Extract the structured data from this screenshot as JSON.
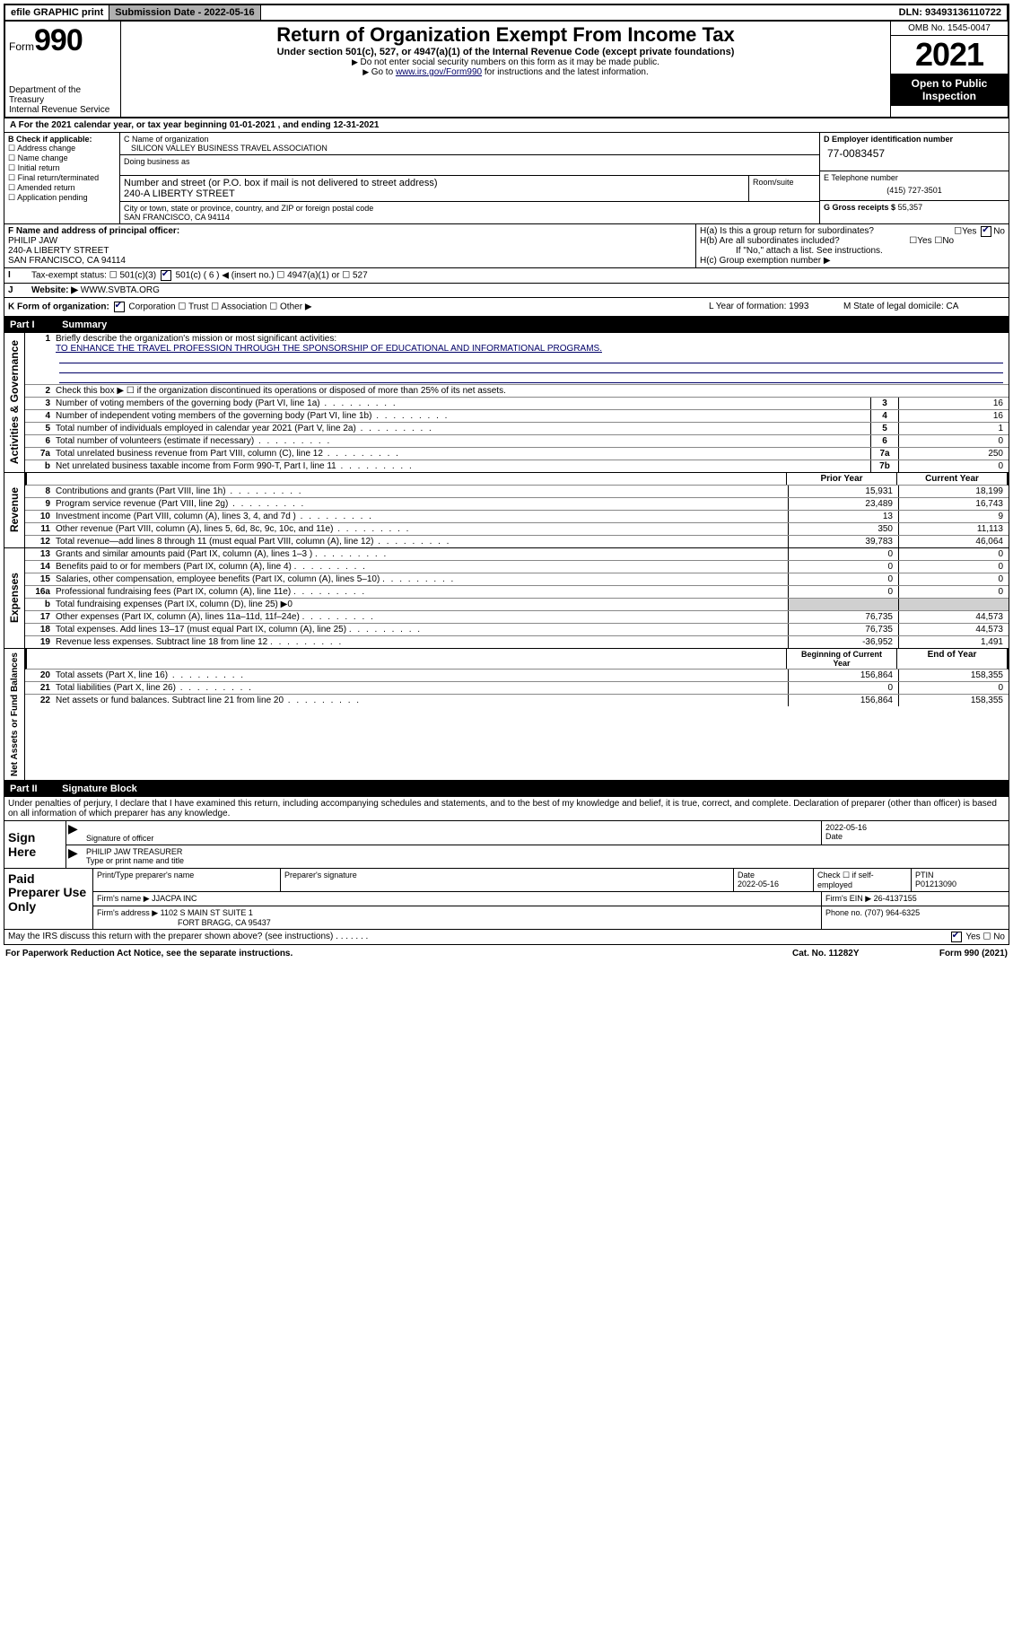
{
  "top": {
    "efile": "efile GRAPHIC print",
    "submission": "Submission Date - 2022-05-16",
    "dln": "DLN: 93493136110722"
  },
  "header": {
    "form_prefix": "Form",
    "form_num": "990",
    "title": "Return of Organization Exempt From Income Tax",
    "subtitle": "Under section 501(c), 527, or 4947(a)(1) of the Internal Revenue Code (except private foundations)",
    "note1": "Do not enter social security numbers on this form as it may be made public.",
    "note2_pre": "Go to ",
    "note2_link": "www.irs.gov/Form990",
    "note2_post": " for instructions and the latest information.",
    "dept": "Department of the Treasury",
    "irs": "Internal Revenue Service",
    "omb": "OMB No. 1545-0047",
    "year": "2021",
    "open": "Open to Public Inspection"
  },
  "periodA": "For the 2021 calendar year, or tax year beginning 01-01-2021   , and ending 12-31-2021",
  "B": {
    "label": "B Check if applicable:",
    "opts": [
      "Address change",
      "Name change",
      "Initial return",
      "Final return/terminated",
      "Amended return",
      "Application pending"
    ]
  },
  "C": {
    "name_lbl": "C Name of organization",
    "name": "SILICON VALLEY BUSINESS TRAVEL ASSOCIATION",
    "dba_lbl": "Doing business as",
    "addr_lbl": "Number and street (or P.O. box if mail is not delivered to street address)",
    "room_lbl": "Room/suite",
    "addr": "240-A LIBERTY STREET",
    "city_lbl": "City or town, state or province, country, and ZIP or foreign postal code",
    "city": "SAN FRANCISCO, CA  94114"
  },
  "D": {
    "lbl": "D Employer identification number",
    "val": "77-0083457"
  },
  "E": {
    "lbl": "E Telephone number",
    "val": "(415) 727-3501"
  },
  "G": {
    "lbl": "G Gross receipts $",
    "val": "55,357"
  },
  "F": {
    "lbl": "F  Name and address of principal officer:",
    "name": "PHILIP JAW",
    "addr1": "240-A LIBERTY STREET",
    "addr2": "SAN FRANCISCO, CA  94114"
  },
  "H": {
    "a": "H(a)  Is this a group return for subordinates?",
    "a_yes": "Yes",
    "a_no": "No",
    "b": "H(b)  Are all subordinates included?",
    "b_yes": "Yes",
    "b_no": "No",
    "b_note": "If \"No,\" attach a list. See instructions.",
    "c": "H(c)  Group exemption number ▶"
  },
  "I": {
    "lbl": "Tax-exempt status:",
    "opt1": "501(c)(3)",
    "opt2": "501(c) ( 6 ) ◀ (insert no.)",
    "opt3": "4947(a)(1) or",
    "opt4": "527"
  },
  "J": {
    "lbl": "Website: ▶",
    "val": "WWW.SVBTA.ORG"
  },
  "K": {
    "lbl": "K Form of organization:",
    "opts": [
      "Corporation",
      "Trust",
      "Association",
      "Other ▶"
    ],
    "L": "L Year of formation: 1993",
    "M": "M State of legal domicile: CA"
  },
  "parts": {
    "p1": {
      "num": "Part I",
      "title": "Summary"
    },
    "p2": {
      "num": "Part II",
      "title": "Signature Block"
    }
  },
  "side_labels": {
    "gov": "Activities & Governance",
    "rev": "Revenue",
    "exp": "Expenses",
    "net": "Net Assets or Fund Balances"
  },
  "summary": {
    "l1": "Briefly describe the organization's mission or most significant activities:",
    "mission": "TO ENHANCE THE TRAVEL PROFESSION THROUGH THE SPONSORSHIP OF EDUCATIONAL AND INFORMATIONAL PROGRAMS.",
    "l2": "Check this box ▶ ☐  if the organization discontinued its operations or disposed of more than 25% of its net assets.",
    "lines_gov": [
      {
        "n": "3",
        "t": "Number of voting members of the governing body (Part VI, line 1a)",
        "bn": "3",
        "v": "16"
      },
      {
        "n": "4",
        "t": "Number of independent voting members of the governing body (Part VI, line 1b)",
        "bn": "4",
        "v": "16"
      },
      {
        "n": "5",
        "t": "Total number of individuals employed in calendar year 2021 (Part V, line 2a)",
        "bn": "5",
        "v": "1"
      },
      {
        "n": "6",
        "t": "Total number of volunteers (estimate if necessary)",
        "bn": "6",
        "v": "0"
      },
      {
        "n": "7a",
        "t": "Total unrelated business revenue from Part VIII, column (C), line 12",
        "bn": "7a",
        "v": "250"
      },
      {
        "n": "b",
        "t": "Net unrelated business taxable income from Form 990-T, Part I, line 11",
        "bn": "7b",
        "v": "0"
      }
    ],
    "col_hdr": {
      "prior": "Prior Year",
      "curr": "Current Year"
    },
    "lines_rev": [
      {
        "n": "8",
        "t": "Contributions and grants (Part VIII, line 1h)",
        "p": "15,931",
        "c": "18,199"
      },
      {
        "n": "9",
        "t": "Program service revenue (Part VIII, line 2g)",
        "p": "23,489",
        "c": "16,743"
      },
      {
        "n": "10",
        "t": "Investment income (Part VIII, column (A), lines 3, 4, and 7d )",
        "p": "13",
        "c": "9"
      },
      {
        "n": "11",
        "t": "Other revenue (Part VIII, column (A), lines 5, 6d, 8c, 9c, 10c, and 11e)",
        "p": "350",
        "c": "11,113"
      },
      {
        "n": "12",
        "t": "Total revenue—add lines 8 through 11 (must equal Part VIII, column (A), line 12)",
        "p": "39,783",
        "c": "46,064"
      }
    ],
    "lines_exp": [
      {
        "n": "13",
        "t": "Grants and similar amounts paid (Part IX, column (A), lines 1–3 )",
        "p": "0",
        "c": "0"
      },
      {
        "n": "14",
        "t": "Benefits paid to or for members (Part IX, column (A), line 4)",
        "p": "0",
        "c": "0"
      },
      {
        "n": "15",
        "t": "Salaries, other compensation, employee benefits (Part IX, column (A), lines 5–10)",
        "p": "0",
        "c": "0"
      },
      {
        "n": "16a",
        "t": "Professional fundraising fees (Part IX, column (A), line 11e)",
        "p": "0",
        "c": "0"
      },
      {
        "n": "b",
        "t": "Total fundraising expenses (Part IX, column (D), line 25) ▶0",
        "p": "",
        "c": "",
        "shade": true
      },
      {
        "n": "17",
        "t": "Other expenses (Part IX, column (A), lines 11a–11d, 11f–24e)",
        "p": "76,735",
        "c": "44,573"
      },
      {
        "n": "18",
        "t": "Total expenses. Add lines 13–17 (must equal Part IX, column (A), line 25)",
        "p": "76,735",
        "c": "44,573"
      },
      {
        "n": "19",
        "t": "Revenue less expenses. Subtract line 18 from line 12",
        "p": "-36,952",
        "c": "1,491"
      }
    ],
    "col_hdr2": {
      "beg": "Beginning of Current Year",
      "end": "End of Year"
    },
    "lines_net": [
      {
        "n": "20",
        "t": "Total assets (Part X, line 16)",
        "p": "156,864",
        "c": "158,355"
      },
      {
        "n": "21",
        "t": "Total liabilities (Part X, line 26)",
        "p": "0",
        "c": "0"
      },
      {
        "n": "22",
        "t": "Net assets or fund balances. Subtract line 21 from line 20",
        "p": "156,864",
        "c": "158,355"
      }
    ]
  },
  "sig": {
    "perjury": "Under penalties of perjury, I declare that I have examined this return, including accompanying schedules and statements, and to the best of my knowledge and belief, it is true, correct, and complete. Declaration of preparer (other than officer) is based on all information of which preparer has any knowledge.",
    "sign_here": "Sign Here",
    "sig_officer": "Signature of officer",
    "date": "Date",
    "date_val": "2022-05-16",
    "name_title": "PHILIP JAW  TREASURER",
    "name_lbl": "Type or print name and title"
  },
  "paid": {
    "lbl": "Paid Preparer Use Only",
    "hdr": [
      "Print/Type preparer's name",
      "Preparer's signature",
      "Date",
      "",
      "PTIN"
    ],
    "date": "2022-05-16",
    "check": "Check ☐ if self-employed",
    "ptin": "P01213090",
    "firm_name_lbl": "Firm's name    ▶",
    "firm_name": "JJACPA INC",
    "firm_ein_lbl": "Firm's EIN ▶",
    "firm_ein": "26-4137155",
    "firm_addr_lbl": "Firm's address ▶",
    "firm_addr1": "1102 S MAIN ST SUITE 1",
    "firm_addr2": "FORT BRAGG, CA  95437",
    "phone_lbl": "Phone no.",
    "phone": "(707) 964-6325"
  },
  "discuss": {
    "q": "May the IRS discuss this return with the preparer shown above? (see instructions)",
    "yes": "Yes",
    "no": "No"
  },
  "footer": {
    "l": "For Paperwork Reduction Act Notice, see the separate instructions.",
    "m": "Cat. No. 11282Y",
    "r": "Form 990 (2021)"
  }
}
